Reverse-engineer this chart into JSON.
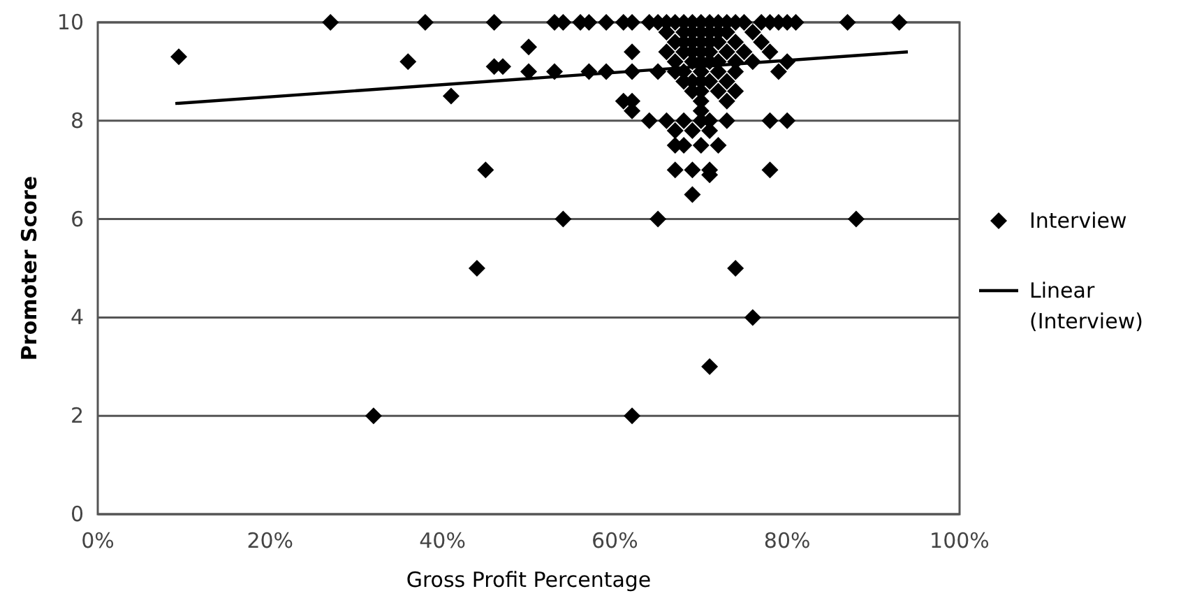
{
  "chart_data": {
    "type": "scatter",
    "xlabel": "Gross Profit Percentage",
    "ylabel": "Promoter Score",
    "xlim": [
      0,
      100
    ],
    "xticks": [
      {
        "value": 0,
        "label": "0%"
      },
      {
        "value": 20,
        "label": "20%"
      },
      {
        "value": 40,
        "label": "40%"
      },
      {
        "value": 60,
        "label": "60%"
      },
      {
        "value": 80,
        "label": "80%"
      },
      {
        "value": 100,
        "label": "100%"
      }
    ],
    "ylim": [
      0,
      10
    ],
    "yticks": [
      0,
      2,
      4,
      6,
      8,
      10
    ],
    "grid": "y",
    "legend": "right",
    "series": [
      {
        "name": "Interview",
        "marker": "diamond",
        "color": "#000000",
        "x": [
          9.4,
          27,
          36,
          38,
          41,
          46,
          46,
          47,
          45,
          44,
          32,
          50,
          53,
          54,
          56,
          57,
          59,
          61,
          62,
          64,
          65,
          66,
          67,
          68,
          69,
          70,
          71,
          72,
          73,
          74,
          75,
          77,
          78,
          79,
          80,
          81,
          87,
          93,
          66,
          68,
          69,
          70,
          71,
          72,
          73,
          76,
          67,
          68,
          69,
          70,
          71,
          72,
          74,
          77,
          62,
          66,
          68,
          69,
          70,
          71,
          73,
          75,
          78,
          67,
          69,
          70,
          71,
          72,
          74,
          76,
          80,
          50,
          53,
          57,
          59,
          62,
          65,
          67,
          68,
          70,
          72,
          74,
          79,
          68,
          69,
          70,
          71,
          73,
          69,
          70,
          72,
          74,
          61,
          62,
          70,
          73,
          62,
          70,
          64,
          66,
          68,
          70,
          71,
          73,
          78,
          80,
          67,
          69,
          71,
          67,
          68,
          70,
          72,
          67,
          69,
          71,
          78,
          71,
          69,
          54,
          65,
          88,
          74,
          71,
          76,
          62
        ],
        "values": [
          9.3,
          10,
          9.2,
          10,
          8.5,
          10,
          9.1,
          9.1,
          7,
          5,
          2,
          9.5,
          10,
          10,
          10,
          10,
          10,
          10,
          10,
          10,
          10,
          10,
          10,
          10,
          10,
          10,
          10,
          10,
          10,
          10,
          10,
          10,
          10,
          10,
          10,
          10,
          10,
          10,
          9.8,
          9.8,
          9.8,
          9.8,
          9.8,
          9.8,
          9.8,
          9.8,
          9.6,
          9.6,
          9.6,
          9.6,
          9.6,
          9.6,
          9.6,
          9.6,
          9.4,
          9.4,
          9.4,
          9.4,
          9.4,
          9.4,
          9.4,
          9.4,
          9.4,
          9.2,
          9.2,
          9.2,
          9.2,
          9.2,
          9.2,
          9.2,
          9.2,
          9,
          9,
          9,
          9,
          9,
          9,
          9,
          9,
          9,
          9,
          9,
          9,
          8.8,
          8.8,
          8.8,
          8.8,
          8.8,
          8.6,
          8.6,
          8.6,
          8.6,
          8.4,
          8.4,
          8.4,
          8.4,
          8.2,
          8.2,
          8,
          8,
          8,
          8,
          8,
          8,
          8,
          8,
          7.8,
          7.8,
          7.8,
          7.5,
          7.5,
          7.5,
          7.5,
          7,
          7,
          7,
          7,
          6.9,
          6.5,
          6,
          6,
          6,
          5,
          3,
          4,
          2
        ]
      },
      {
        "name": "Linear (Interview)",
        "type": "line",
        "marker": "none",
        "line_style": "solid",
        "color": "#000000",
        "x": [
          9,
          94
        ],
        "values": [
          8.35,
          9.4
        ]
      }
    ]
  }
}
